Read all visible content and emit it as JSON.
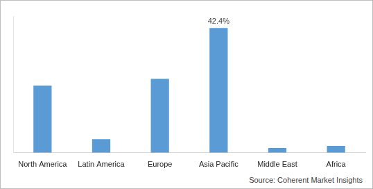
{
  "chart_data": {
    "type": "bar",
    "categories": [
      "North America",
      "Latin America",
      "Europe",
      "Asia Pacific",
      "Middle East",
      "Africa"
    ],
    "values": [
      22.8,
      4.6,
      25.1,
      42.4,
      1.6,
      2.3
    ],
    "value_labels": [
      null,
      null,
      null,
      "42.4%",
      null,
      null
    ],
    "data_labels": true,
    "color": "#5b9bd5",
    "ylim": [
      0,
      46.5
    ],
    "grid": false,
    "tick_labels": "x",
    "source": "Source: Coherent Market Insights"
  }
}
